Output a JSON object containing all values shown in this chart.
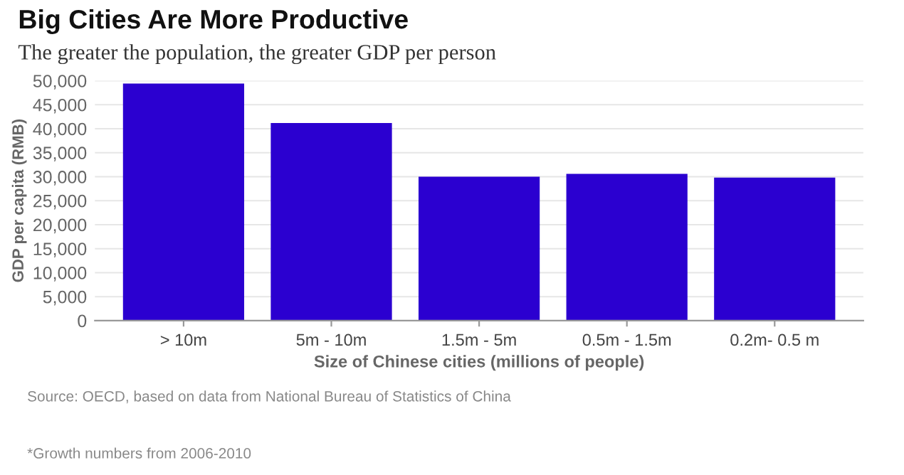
{
  "chart_data": {
    "type": "bar",
    "title": "Big Cities Are More Productive",
    "subtitle": "The greater the population, the greater GDP per person",
    "categories": [
      "> 10m",
      "5m - 10m",
      "1.5m - 5m",
      "0.5m - 1.5m",
      "0.2m- 0.5 m"
    ],
    "values": [
      49400,
      41200,
      30000,
      30600,
      29800
    ],
    "color": "#2b00d0",
    "xlabel": "Size of Chinese cities (millions of people)",
    "ylabel": "GDP per capita (RMB)",
    "ylim": [
      0,
      50000
    ],
    "yticks": [
      {
        "value": 0,
        "label": "0"
      },
      {
        "value": 5000,
        "label": "5,000"
      },
      {
        "value": 10000,
        "label": "10,000"
      },
      {
        "value": 15000,
        "label": "15,000"
      },
      {
        "value": 20000,
        "label": "20,000"
      },
      {
        "value": 25000,
        "label": "25,000"
      },
      {
        "value": 30000,
        "label": "30,000"
      },
      {
        "value": 35000,
        "label": "35,000"
      },
      {
        "value": 40000,
        "label": "40,000"
      },
      {
        "value": 45000,
        "label": "45,000"
      },
      {
        "value": 50000,
        "label": "50,000"
      }
    ],
    "grid": "y",
    "annotations": [
      "Source: OECD, based on data from National Bureau of Statistics of China",
      "*Growth numbers from 2006-2010"
    ]
  }
}
